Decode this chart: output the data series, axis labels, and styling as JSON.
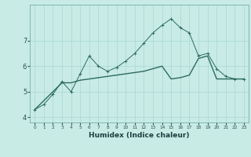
{
  "xlabel": "Humidex (Indice chaleur)",
  "x_values": [
    0,
    1,
    2,
    3,
    4,
    5,
    6,
    7,
    8,
    9,
    10,
    11,
    12,
    13,
    14,
    15,
    16,
    17,
    18,
    19,
    20,
    21,
    22,
    23
  ],
  "y_main": [
    4.3,
    4.5,
    4.9,
    5.4,
    5.0,
    5.7,
    6.4,
    6.0,
    5.8,
    5.95,
    6.2,
    6.5,
    6.9,
    7.3,
    7.6,
    7.85,
    7.5,
    7.3,
    6.4,
    6.5,
    5.9,
    5.6,
    5.5,
    5.5
  ],
  "y_smooth": [
    4.3,
    4.65,
    5.0,
    5.35,
    5.35,
    5.45,
    5.5,
    5.55,
    5.6,
    5.65,
    5.7,
    5.75,
    5.8,
    5.9,
    6.0,
    5.5,
    5.55,
    5.65,
    6.3,
    6.4,
    5.5,
    5.5,
    5.5,
    5.5
  ],
  "line_color": "#2E6B5E",
  "bg_color": "#C8EBE6",
  "grid_color": "#A8D8D0",
  "ylim": [
    3.8,
    8.4
  ],
  "yticks": [
    4,
    5,
    6,
    7
  ],
  "xlim": [
    -0.5,
    23.5
  ]
}
